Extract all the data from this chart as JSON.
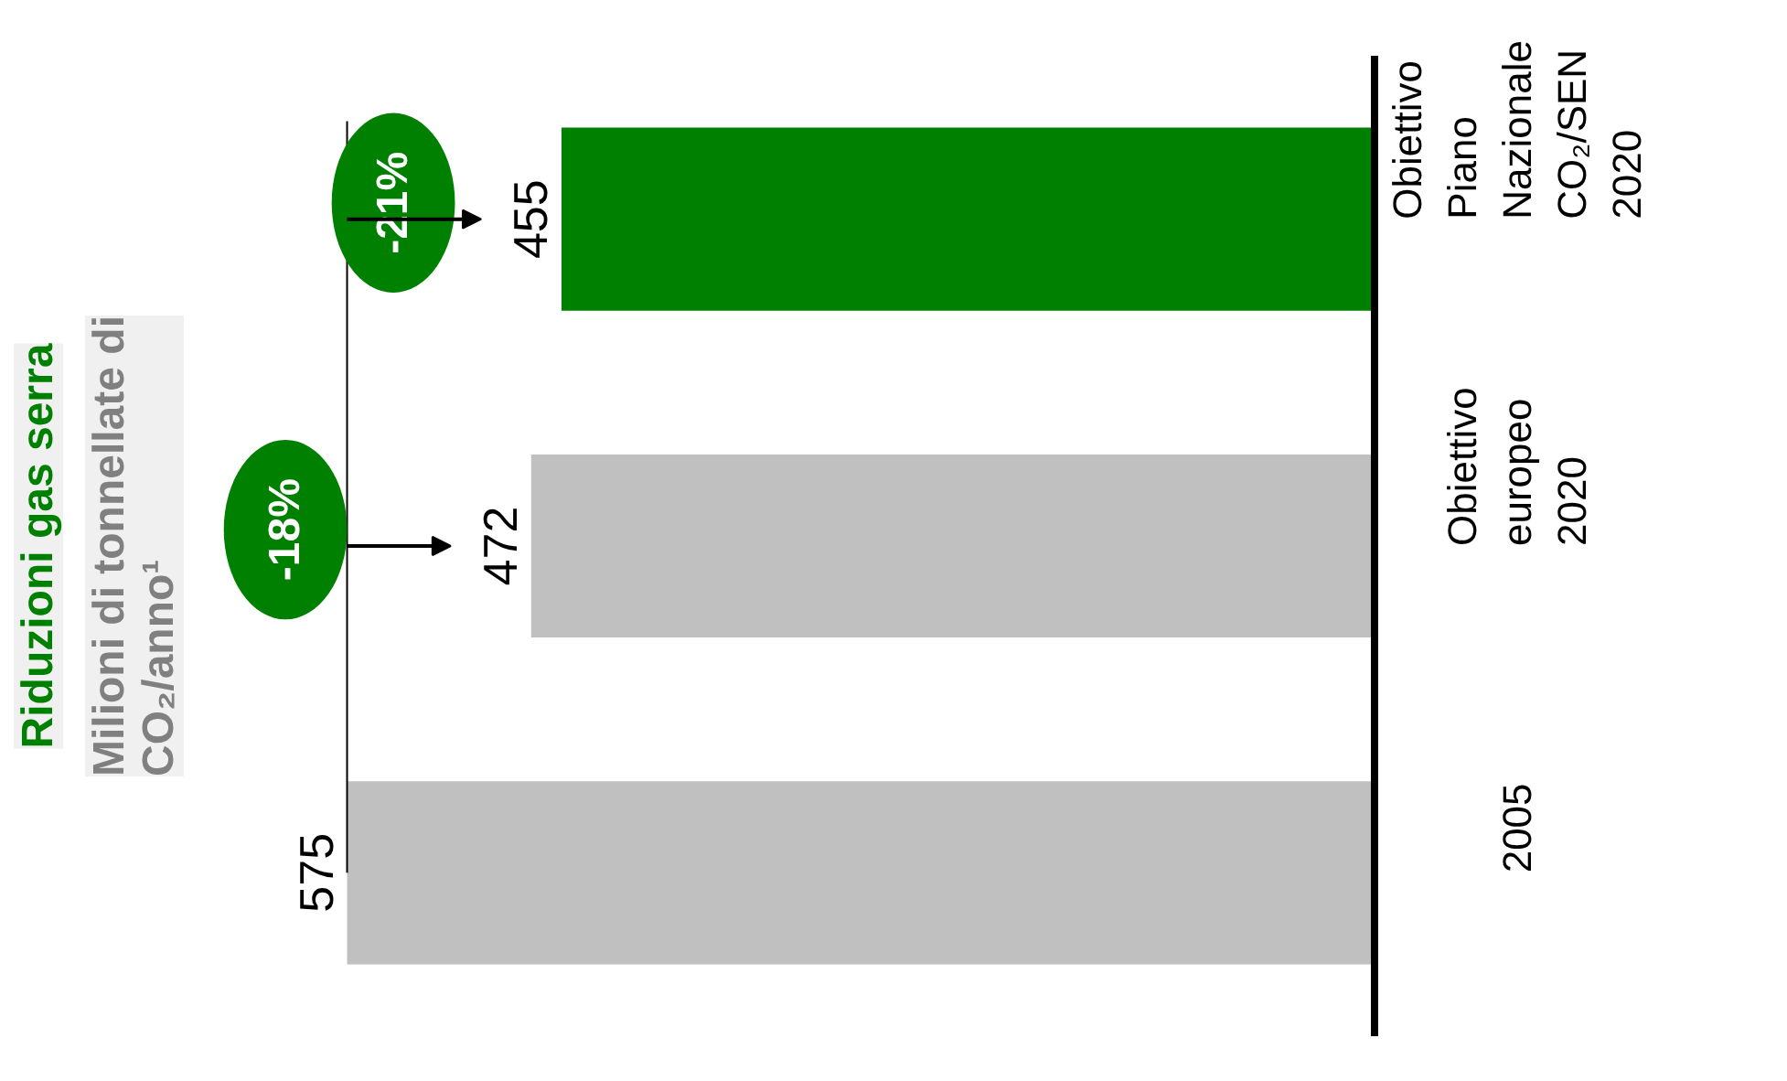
{
  "chart_data": {
    "type": "bar",
    "orientation": "horizontal",
    "title": "Riduzioni gas serra",
    "subtitle": "Milioni di tonnellate di\nCO₂/anno¹",
    "categories": [
      "Obiettivo\nPiano\nNazionale\nCO₂/SEN\n2020",
      "Obiettivo\neuropeo\n2020",
      "2005"
    ],
    "values": [
      455,
      472,
      575
    ],
    "colors": [
      "#008000",
      "#c0c0c0",
      "#c0c0c0"
    ],
    "tick_labels": "y",
    "data_labels": true,
    "grid": false,
    "annotations": [
      "-21%",
      "-18%"
    ]
  }
}
